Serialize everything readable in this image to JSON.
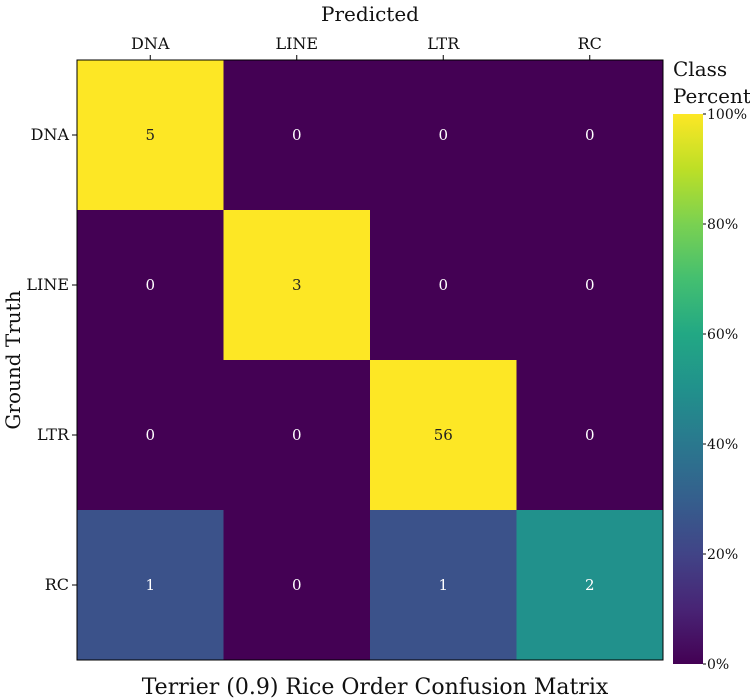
{
  "chart_data": {
    "type": "heatmap",
    "title": "Terrier (0.9) Rice Order Confusion Matrix",
    "xlabel": "Predicted",
    "ylabel": "Ground Truth",
    "x_categories": [
      "DNA",
      "LINE",
      "LTR",
      "RC"
    ],
    "y_categories": [
      "DNA",
      "LINE",
      "LTR",
      "RC"
    ],
    "counts": [
      [
        5,
        0,
        0,
        0
      ],
      [
        0,
        3,
        0,
        0
      ],
      [
        0,
        0,
        56,
        0
      ],
      [
        1,
        0,
        1,
        2
      ]
    ],
    "colorbar": {
      "title_line1": "Class",
      "title_line2": "Percent",
      "range": [
        0,
        100
      ],
      "ticks": [
        0,
        20,
        40,
        60,
        80,
        100
      ],
      "tick_labels": [
        "0%",
        "20%",
        "40%",
        "60%",
        "80%",
        "100%"
      ],
      "colormap": "viridis"
    }
  }
}
